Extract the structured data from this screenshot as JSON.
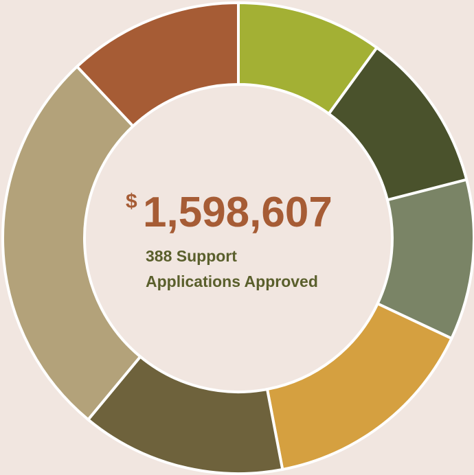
{
  "chart_data": {
    "type": "donut",
    "currency_symbol": "$",
    "total": "1,598,607",
    "subtitle_lines": [
      "388 Support",
      "Applications Approved"
    ],
    "categories": [
      null,
      null,
      null,
      null,
      null,
      null,
      null
    ],
    "values": [
      10,
      11,
      11,
      15,
      14,
      27,
      12
    ],
    "colors": [
      "#a3b034",
      "#4a522c",
      "#7a8466",
      "#d5a040",
      "#6e623c",
      "#b3a27a",
      "#a65c35"
    ]
  }
}
